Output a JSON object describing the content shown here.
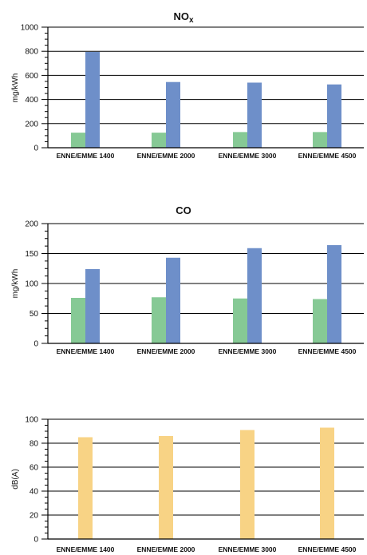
{
  "colors": {
    "green": "#86c995",
    "blue": "#6e8fc9",
    "orange": "#f8d385",
    "grid": "#000000",
    "background": "#ffffff"
  },
  "chart_data": [
    {
      "type": "bar",
      "title": "NOx",
      "title_main": "NO",
      "title_sub": "x",
      "ylabel": "mg/kWh",
      "ylim": [
        0,
        1000
      ],
      "yticks": [
        0,
        200,
        400,
        600,
        800,
        1000
      ],
      "grid": true,
      "categories": [
        "ENNE/EMME 1400",
        "ENNE/EMME 2000",
        "ENNE/EMME 3000",
        "ENNE/EMME 4500"
      ],
      "series": [
        {
          "color": "#86c995",
          "values": [
            125,
            125,
            130,
            130
          ]
        },
        {
          "color": "#6e8fc9",
          "values": [
            795,
            545,
            540,
            525
          ]
        }
      ]
    },
    {
      "type": "bar",
      "title": "CO",
      "ylabel": "mg/kWh",
      "ylim": [
        0,
        200
      ],
      "yticks": [
        0,
        50,
        100,
        150,
        200
      ],
      "grid": true,
      "categories": [
        "ENNE/EMME 1400",
        "ENNE/EMME 2000",
        "ENNE/EMME 3000",
        "ENNE/EMME 4500"
      ],
      "series": [
        {
          "color": "#86c995",
          "values": [
            76,
            77,
            75,
            74
          ]
        },
        {
          "color": "#6e8fc9",
          "values": [
            124,
            143,
            159,
            164
          ]
        }
      ]
    },
    {
      "type": "bar",
      "title": "",
      "ylabel": "dB(A)",
      "ylim": [
        0,
        100
      ],
      "yticks": [
        0,
        20,
        40,
        60,
        80,
        100
      ],
      "grid": true,
      "categories": [
        "ENNE/EMME 1400",
        "ENNE/EMME 2000",
        "ENNE/EMME 3000",
        "ENNE/EMME 4500"
      ],
      "series": [
        {
          "color": "#f8d385",
          "values": [
            85,
            86,
            91,
            93
          ]
        }
      ]
    }
  ]
}
